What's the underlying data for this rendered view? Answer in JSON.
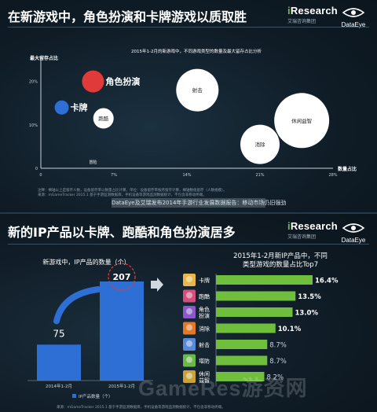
{
  "top": {
    "title": "在新游戏中，角色扮演和卡牌游戏以质取胜",
    "chart_title": "2015年1-2月的新游戏中，不同游戏类型的数量及最大留存占比分析",
    "ylabel": "最大留存占比",
    "xlabel": "数量占比",
    "footnote1": "注释：横轴以上是留存人数，设备留存率以数量占比计算，单位：设备留存率按月留存计算，横轴数值留存（人数规模）。",
    "footnote2": "来源：mGameTracker 2015.1 基于手游监测数据库，手机设备等游戏监测数据统计，不包含非移动终端。",
    "caption": "DataEye及艾瑞发布2014年手游行业发展数据报告：移动市场仍旧强劲",
    "brand_research": "Research",
    "brand_research_i": "i",
    "brand_research_sub": "艾瑞咨询集团",
    "brand_dataeye": "DataEye"
  },
  "bottom": {
    "title": "新的IP产品以卡牌、跑酷和角色扮演居多",
    "brand_research": "Research",
    "brand_research_i": "i",
    "brand_research_sub": "艾瑞咨询集团",
    "brand_dataeye": "DataEye",
    "footnote": "来源：mGameTracker 2015.1 基于手游监测数据库，手机设备等游戏监测数据统计，不包含非移动终端。",
    "watermark": "GameRes游资网"
  },
  "chart_data": [
    {
      "type": "scatter",
      "title": "2015年1-2月的新游戏中，不同游戏类型的数量及最大留存占比分析",
      "xlabel": "数量占比",
      "ylabel": "最大留存占比",
      "xlim": [
        0,
        28
      ],
      "ylim": [
        0,
        25
      ],
      "x_ticks": [
        "0",
        "7%",
        "14%",
        "21%",
        "28%"
      ],
      "y_ticks": [
        "0",
        "10%",
        "20%"
      ],
      "points": [
        {
          "label": "角色扮演",
          "x": 5,
          "y": 20,
          "size": 14,
          "color": "#e03a3a"
        },
        {
          "label": "卡牌",
          "x": 2,
          "y": 14,
          "size": 9,
          "color": "#2e6fd6"
        },
        {
          "label": "跑酷",
          "x": 6,
          "y": 11.5,
          "size": 13,
          "color": "#ffffff"
        },
        {
          "label": "射击",
          "x": 15,
          "y": 18,
          "size": 27,
          "color": "#ffffff"
        },
        {
          "label": "休闲益智",
          "x": 25,
          "y": 11,
          "size": 35,
          "color": "#ffffff"
        },
        {
          "label": "消除",
          "x": 21,
          "y": 5.5,
          "size": 25,
          "color": "#ffffff"
        },
        {
          "label": "冒险",
          "x": 5,
          "y": 1.5,
          "size": 0,
          "color": "#ffffff"
        }
      ]
    },
    {
      "type": "bar",
      "title": "新游戏中，IP产品的数量（个）",
      "categories": [
        "2014年1-2月",
        "2015年1-2月"
      ],
      "values": [
        75,
        207
      ],
      "legend": "IP产品数量（个）",
      "color": "#2e6fd6",
      "ylim": [
        0,
        230
      ]
    },
    {
      "type": "bar",
      "orientation": "horizontal",
      "title": "2015年1-2月新IP产品中，不同类型游戏的数量占比Top7",
      "categories": [
        "卡牌",
        "跑酷",
        "角色扮演",
        "消除",
        "射击",
        "塔防",
        "休闲益智"
      ],
      "values": [
        16.4,
        13.5,
        13.0,
        10.1,
        8.7,
        8.7,
        8.2
      ],
      "labels": [
        "16.4%",
        "13.5%",
        "13.0%",
        "10.1%",
        "8.7%",
        "8.7%",
        "8.2%"
      ],
      "bold": [
        true,
        true,
        true,
        true,
        false,
        false,
        false
      ],
      "color": "#6fbf3c",
      "xlim": [
        0,
        18
      ]
    }
  ]
}
